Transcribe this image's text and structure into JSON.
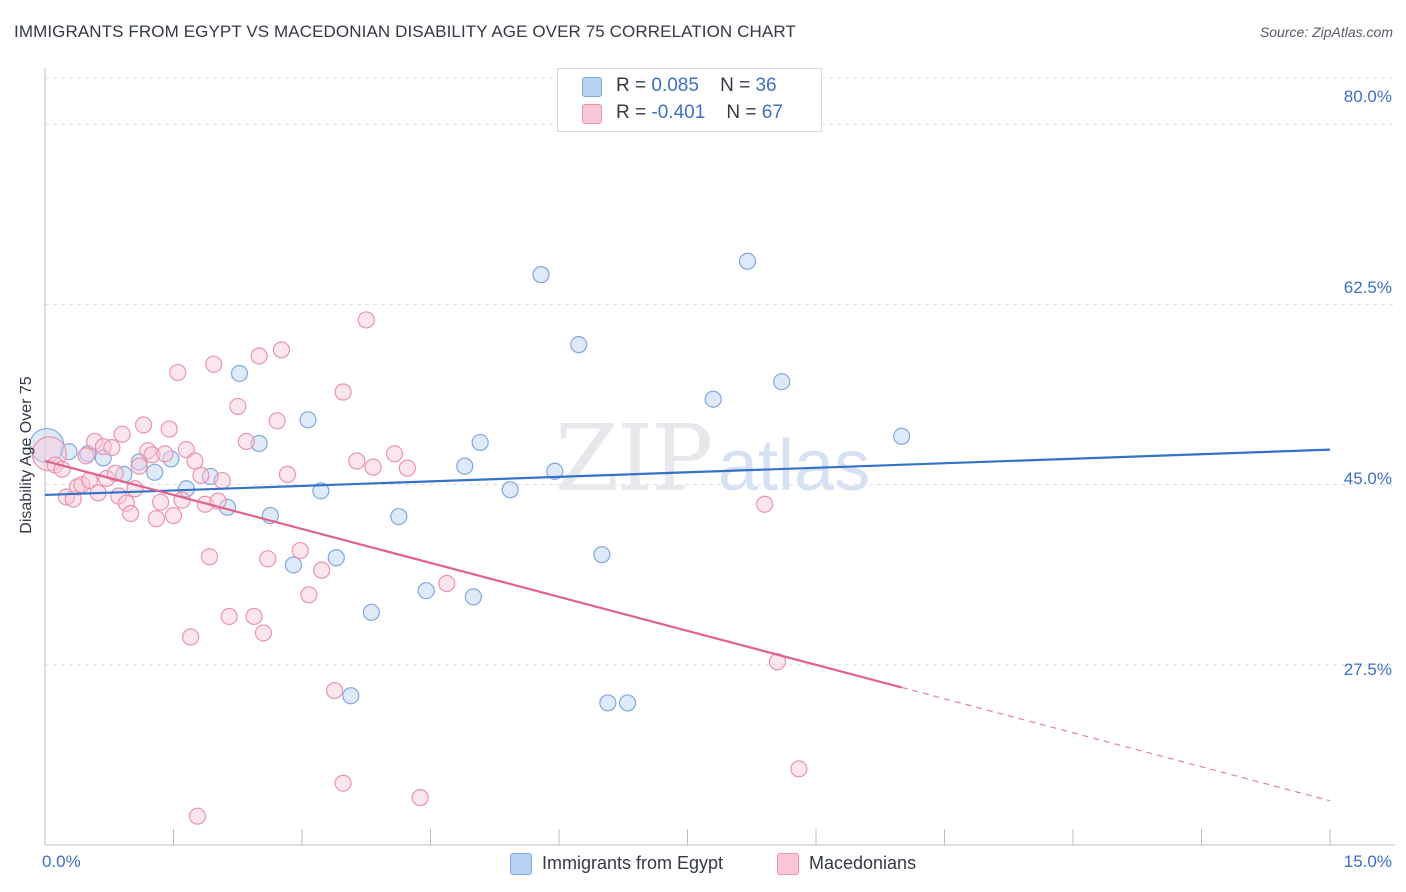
{
  "header": {
    "title": "IMMIGRANTS FROM EGYPT VS MACEDONIAN DISABILITY AGE OVER 75 CORRELATION CHART",
    "source": "Source: ZipAtlas.com"
  },
  "watermark": {
    "zip": "ZIP",
    "atlas": "atlas"
  },
  "legend": {
    "r_label": "R =",
    "n_label": "N =",
    "series": [
      {
        "name": "Immigrants from Egypt",
        "r": "0.085",
        "n": "36",
        "fill": "#b8d0f2",
        "stroke": "#7fa8e3"
      },
      {
        "name": "Macedonians",
        "r": "-0.401",
        "n": "67",
        "fill": "#f8c8d6",
        "stroke": "#ec93b0"
      }
    ]
  },
  "chart_data": {
    "type": "scatter",
    "title": "IMMIGRANTS FROM EGYPT VS MACEDONIAN DISABILITY AGE OVER 75 CORRELATION CHART",
    "xlabel": "",
    "ylabel": "Disability Age Over 75",
    "xlim": [
      0,
      15
    ],
    "ylim": [
      10.0,
      84.5
    ],
    "x_tick_labels": [
      "0.0%",
      "15.0%"
    ],
    "y_ticks": [
      27.5,
      45.0,
      62.5,
      80.0
    ],
    "y_tick_labels": [
      "27.5%",
      "45.0%",
      "62.5%",
      "80.0%"
    ],
    "grid": true,
    "series": [
      {
        "name": "Immigrants from Egypt",
        "color": "#3572c8",
        "points": [
          {
            "x": 0.02,
            "y": 48.8,
            "big": true
          },
          {
            "x": 0.28,
            "y": 48.2
          },
          {
            "x": 0.5,
            "y": 48.0
          },
          {
            "x": 0.68,
            "y": 47.6
          },
          {
            "x": 0.92,
            "y": 46.0
          },
          {
            "x": 1.1,
            "y": 47.2
          },
          {
            "x": 1.28,
            "y": 46.2
          },
          {
            "x": 1.47,
            "y": 47.5
          },
          {
            "x": 1.65,
            "y": 44.6
          },
          {
            "x": 1.93,
            "y": 45.8
          },
          {
            "x": 2.13,
            "y": 42.8
          },
          {
            "x": 2.27,
            "y": 55.8
          },
          {
            "x": 2.5,
            "y": 49.0
          },
          {
            "x": 2.63,
            "y": 42.0
          },
          {
            "x": 2.9,
            "y": 37.2
          },
          {
            "x": 3.07,
            "y": 51.3
          },
          {
            "x": 3.22,
            "y": 44.4
          },
          {
            "x": 3.4,
            "y": 37.9
          },
          {
            "x": 3.57,
            "y": 24.5
          },
          {
            "x": 3.81,
            "y": 32.6
          },
          {
            "x": 4.13,
            "y": 41.9
          },
          {
            "x": 4.45,
            "y": 34.7
          },
          {
            "x": 4.9,
            "y": 46.8
          },
          {
            "x": 5.08,
            "y": 49.1
          },
          {
            "x": 5.43,
            "y": 44.5
          },
          {
            "x": 5.79,
            "y": 65.4
          },
          {
            "x": 5.95,
            "y": 46.3
          },
          {
            "x": 6.23,
            "y": 58.6
          },
          {
            "x": 6.5,
            "y": 38.2
          },
          {
            "x": 6.57,
            "y": 23.8
          },
          {
            "x": 6.8,
            "y": 23.8
          },
          {
            "x": 7.8,
            "y": 53.3
          },
          {
            "x": 8.2,
            "y": 66.7
          },
          {
            "x": 8.6,
            "y": 55.0
          },
          {
            "x": 10.0,
            "y": 49.7
          },
          {
            "x": 5.0,
            "y": 34.1
          }
        ],
        "trend": {
          "x1": 0.0,
          "y1": 44.0,
          "x2": 15.0,
          "y2": 48.4
        }
      },
      {
        "name": "Macedonians",
        "color": "#e0638c",
        "points": [
          {
            "x": 0.05,
            "y": 48.0,
            "big": true
          },
          {
            "x": 0.12,
            "y": 46.9
          },
          {
            "x": 0.2,
            "y": 46.5
          },
          {
            "x": 0.25,
            "y": 43.8
          },
          {
            "x": 0.33,
            "y": 43.6
          },
          {
            "x": 0.38,
            "y": 44.8
          },
          {
            "x": 0.43,
            "y": 45.0
          },
          {
            "x": 0.48,
            "y": 47.8
          },
          {
            "x": 0.52,
            "y": 45.4
          },
          {
            "x": 0.58,
            "y": 49.2
          },
          {
            "x": 0.62,
            "y": 44.2
          },
          {
            "x": 0.68,
            "y": 48.7
          },
          {
            "x": 0.72,
            "y": 45.6
          },
          {
            "x": 0.78,
            "y": 48.6
          },
          {
            "x": 0.82,
            "y": 46.1
          },
          {
            "x": 0.86,
            "y": 43.9
          },
          {
            "x": 0.9,
            "y": 49.9
          },
          {
            "x": 0.95,
            "y": 43.2
          },
          {
            "x": 1.0,
            "y": 42.2
          },
          {
            "x": 1.05,
            "y": 44.6
          },
          {
            "x": 1.1,
            "y": 46.8
          },
          {
            "x": 1.15,
            "y": 50.8
          },
          {
            "x": 1.2,
            "y": 48.3
          },
          {
            "x": 1.25,
            "y": 47.9
          },
          {
            "x": 1.3,
            "y": 41.7
          },
          {
            "x": 1.35,
            "y": 43.3
          },
          {
            "x": 1.4,
            "y": 48.0
          },
          {
            "x": 1.45,
            "y": 50.4
          },
          {
            "x": 1.5,
            "y": 42.0
          },
          {
            "x": 1.55,
            "y": 55.9
          },
          {
            "x": 1.6,
            "y": 43.5
          },
          {
            "x": 1.65,
            "y": 48.4
          },
          {
            "x": 1.7,
            "y": 30.2
          },
          {
            "x": 1.75,
            "y": 47.3
          },
          {
            "x": 1.82,
            "y": 45.9
          },
          {
            "x": 1.87,
            "y": 43.1
          },
          {
            "x": 1.92,
            "y": 38.0
          },
          {
            "x": 1.97,
            "y": 56.7
          },
          {
            "x": 2.02,
            "y": 43.4
          },
          {
            "x": 2.07,
            "y": 45.4
          },
          {
            "x": 2.15,
            "y": 32.2
          },
          {
            "x": 2.25,
            "y": 52.6
          },
          {
            "x": 2.35,
            "y": 49.2
          },
          {
            "x": 2.44,
            "y": 32.2
          },
          {
            "x": 2.5,
            "y": 57.5
          },
          {
            "x": 2.55,
            "y": 30.6
          },
          {
            "x": 2.6,
            "y": 37.8
          },
          {
            "x": 2.71,
            "y": 51.2
          },
          {
            "x": 2.76,
            "y": 58.1
          },
          {
            "x": 2.83,
            "y": 46.0
          },
          {
            "x": 2.98,
            "y": 38.6
          },
          {
            "x": 3.08,
            "y": 34.3
          },
          {
            "x": 3.23,
            "y": 36.7
          },
          {
            "x": 3.38,
            "y": 25.0
          },
          {
            "x": 3.48,
            "y": 54.0
          },
          {
            "x": 3.64,
            "y": 47.3
          },
          {
            "x": 3.75,
            "y": 61.0
          },
          {
            "x": 3.83,
            "y": 46.7
          },
          {
            "x": 4.08,
            "y": 48.0
          },
          {
            "x": 4.23,
            "y": 46.6
          },
          {
            "x": 4.38,
            "y": 14.6
          },
          {
            "x": 4.69,
            "y": 35.4
          },
          {
            "x": 8.4,
            "y": 43.1
          },
          {
            "x": 8.55,
            "y": 27.8
          },
          {
            "x": 8.8,
            "y": 17.4
          },
          {
            "x": 1.78,
            "y": 12.8
          },
          {
            "x": 3.48,
            "y": 16.0
          }
        ],
        "trend": {
          "x1": 0.0,
          "y1": 47.3,
          "x2": 10.0,
          "y2": 25.3
        },
        "trend_extension": {
          "x1": 10.0,
          "y1": 25.3,
          "x2": 15.0,
          "y2": 14.3
        }
      }
    ]
  }
}
